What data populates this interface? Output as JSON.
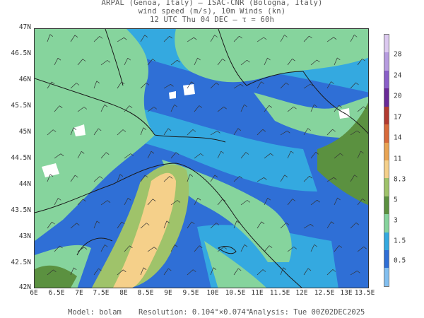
{
  "header": {
    "line1": "ARPAL (Genoa, Italy)  —  ISAC-CNR (Bologna, Italy)",
    "line2": "wind speed (m/s), 10m Winds (kn)",
    "line3": "12 UTC Thu 04 DEC  —  τ = 60h"
  },
  "axes": {
    "lat_labels": [
      "47N",
      "46.5N",
      "46N",
      "45.5N",
      "45N",
      "44.5N",
      "44N",
      "43.5N",
      "43N",
      "42.5N",
      "42N"
    ],
    "lon_labels": [
      "6E",
      "6.5E",
      "7E",
      "7.5E",
      "8E",
      "8.5E",
      "9E",
      "9.5E",
      "10E",
      "10.5E",
      "11E",
      "11.5E",
      "12E",
      "12.5E",
      "13E",
      "13.5E"
    ]
  },
  "colorbar": {
    "labels": [
      "28",
      "24",
      "20",
      "17",
      "14",
      "11",
      "8.3",
      "5",
      "3",
      "1.5",
      "0.5"
    ],
    "colors": [
      "#dcc9f0",
      "#b79ce0",
      "#8a5fc9",
      "#6a2a98",
      "#b23a30",
      "#d86a3a",
      "#e9a453",
      "#f5d08a",
      "#9fc36a",
      "#5b9140",
      "#86d49d",
      "#34a9e0",
      "#2f6fd6",
      "#82bff0"
    ]
  },
  "map_colors": {
    "sea_blue": "#2f6fd6",
    "light_blue": "#34a9e0",
    "green": "#86d49d",
    "dark_green": "#5b9140",
    "olive": "#9fc36a",
    "orange": "#f5d08a",
    "white_patch": "#ffffff"
  },
  "footer": {
    "model": "Model: bolam",
    "resolution": "Resolution: 0.104°×0.074°",
    "analysis": "Analysis: Tue 00Z02DEC2025"
  }
}
